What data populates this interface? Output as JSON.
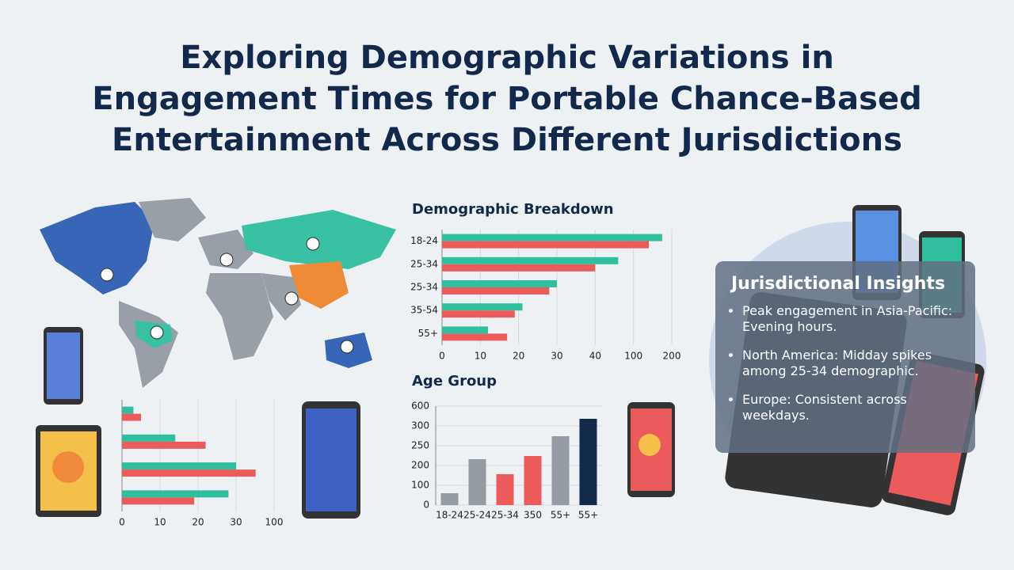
{
  "title": [
    "Exploring Demographic Variations in",
    "Engagement Times for Portable Chance-Based",
    "Entertainment Across Different Jurisdictions"
  ],
  "chart_data": [
    {
      "type": "bar",
      "horizontal": true,
      "title": "Demographic Breakdown",
      "categories": [
        "18-24",
        "25-34",
        "25-34",
        "35-54",
        "55+"
      ],
      "series": [
        {
          "color": "#2fbf9f",
          "values": [
            175,
            76,
            30,
            21,
            12
          ]
        },
        {
          "color": "#ec5b5b",
          "values": [
            140,
            40,
            28,
            19,
            17
          ]
        }
      ],
      "xlim": [
        0,
        200
      ],
      "xticks": [
        0,
        10,
        20,
        30,
        40,
        100,
        200
      ],
      "grid": true
    },
    {
      "type": "bar",
      "horizontal": false,
      "title": "Age Group",
      "categories": [
        "18-24",
        "25-24",
        "25-34",
        "350",
        "55+",
        "55+"
      ],
      "values": [
        60,
        216,
        156,
        224,
        274,
        408
      ],
      "colors": [
        "#959ba3",
        "#959ba3",
        "#ec5b5b",
        "#ec5b5b",
        "#959ba3",
        "#13294b"
      ],
      "ylim": [
        0,
        600
      ],
      "yticks": [
        0,
        100,
        200,
        250,
        300,
        600
      ],
      "grid": true
    },
    {
      "type": "bar",
      "horizontal": true,
      "categories": [
        null,
        null,
        null,
        null
      ],
      "series": [
        {
          "color": "#2fbf9f",
          "values": [
            3,
            14,
            30,
            28
          ]
        },
        {
          "color": "#ec5b5b",
          "values": [
            5,
            22,
            66,
            19
          ]
        }
      ],
      "xlim": [
        0,
        100
      ],
      "xticks": [
        0,
        10,
        20,
        30,
        100
      ],
      "grid": true
    }
  ],
  "insights": {
    "title": "Jurisdictional Insights",
    "items": [
      "Peak engagement in Asia-Pacific: Evening hours.",
      "North America: Midday spikes among 25-34 demographic.",
      "Europe: Consistent across weekdays."
    ]
  }
}
